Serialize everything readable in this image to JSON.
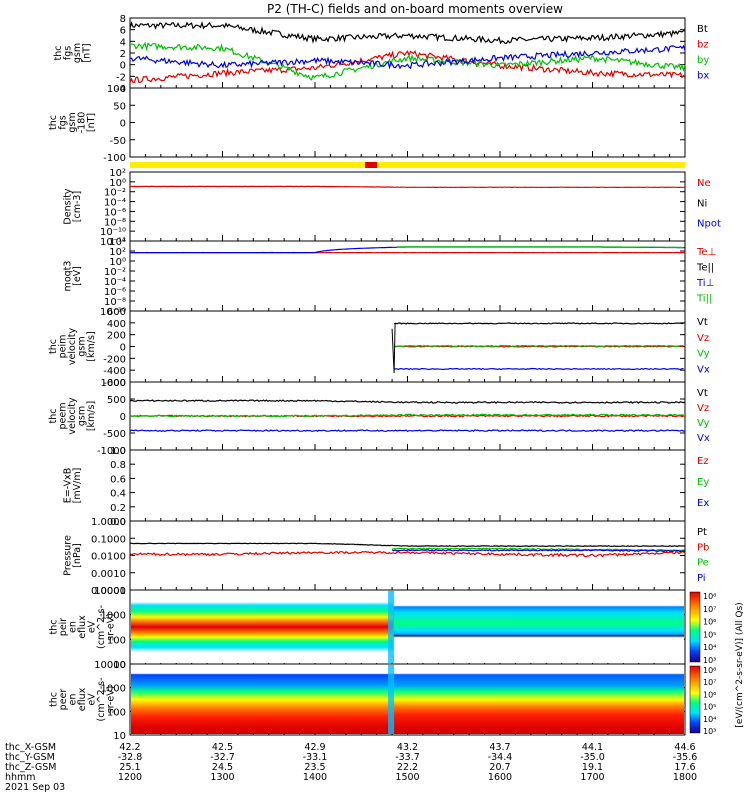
{
  "title": "P2 (TH-C) fields and on-board moments overview",
  "time_axis": {
    "ticks": [
      "1200",
      "1300",
      "1400",
      "1500",
      "1600",
      "1700",
      "1800"
    ],
    "row_labels": [
      "thc_X-GSM",
      "thc_Y-GSM",
      "thc_Z-GSM",
      "hhmm"
    ],
    "rows": [
      [
        "42.2",
        "42.5",
        "42.9",
        "43.2",
        "43.7",
        "44.1",
        "44.6"
      ],
      [
        "-32.8",
        "-32.7",
        "-33.1",
        "-33.7",
        "-34.4",
        "-35.0",
        "-35.6"
      ],
      [
        "25.1",
        "24.5",
        "23.5",
        "22.2",
        "20.7",
        "19.1",
        "17.6"
      ],
      [
        "1200",
        "1300",
        "1400",
        "1500",
        "1600",
        "1700",
        "1800"
      ]
    ],
    "date": "2021 Sep 03"
  },
  "panels": [
    {
      "ylabel": [
        "thc",
        "fgs",
        "gsm",
        "[nT]"
      ],
      "ticks": [
        "8",
        "6",
        "4",
        "2",
        "0",
        "-2",
        "-4"
      ],
      "legend": [
        [
          "Bt",
          "#000000"
        ],
        [
          "bz",
          "#e00000"
        ],
        [
          "by",
          "#00c000"
        ],
        [
          "bx",
          "#0000e0"
        ]
      ]
    },
    {
      "ylabel": [
        "thc",
        "fgs",
        "gsm",
        "-180",
        "[nT]"
      ],
      "ticks": [
        "100",
        "50",
        "0",
        "-50",
        "-100"
      ],
      "legend": []
    },
    {
      "ylabel": [
        "Density",
        "[cm-3]"
      ],
      "ticks": [
        "10²",
        "10⁰",
        "10⁻²",
        "10⁻⁴",
        "10⁻⁶",
        "10⁻⁸",
        "10⁻¹⁰",
        "10⁻¹²"
      ],
      "legend": [
        [
          "Ne",
          "#e00000"
        ],
        [
          "Ni",
          "#000000"
        ],
        [
          "Npot",
          "#0000e0"
        ]
      ]
    },
    {
      "ylabel": [
        "moqt3",
        "[eV]"
      ],
      "ticks": [
        "10⁴",
        "10²",
        "10⁰",
        "10⁻²",
        "10⁻⁴",
        "10⁻⁶",
        "10⁻⁸",
        "10⁻¹⁰"
      ],
      "legend": [
        [
          "Te⊥",
          "#e00000"
        ],
        [
          "Te||",
          "#000000"
        ],
        [
          "Ti⊥",
          "#0000e0"
        ],
        [
          "Ti||",
          "#00c000"
        ]
      ]
    },
    {
      "ylabel": [
        "thc",
        "peim",
        "velocity",
        "gsm",
        "[km/s]"
      ],
      "ticks": [
        "600",
        "400",
        "200",
        "0",
        "-200",
        "-400",
        "-600"
      ],
      "legend": [
        [
          "Vt",
          "#000000"
        ],
        [
          "Vz",
          "#e00000"
        ],
        [
          "Vy",
          "#00c000"
        ],
        [
          "Vx",
          "#0000e0"
        ]
      ]
    },
    {
      "ylabel": [
        "thc",
        "peem",
        "velocity",
        "gsm",
        "[km/s]"
      ],
      "ticks": [
        "1000",
        "500",
        "0",
        "-500",
        "-1000"
      ],
      "legend": [
        [
          "Vt",
          "#000000"
        ],
        [
          "Vz",
          "#e00000"
        ],
        [
          "Vy",
          "#00c000"
        ],
        [
          "Vx",
          "#0000e0"
        ]
      ]
    },
    {
      "ylabel": [
        "E=-VxB",
        "[mV/m]"
      ],
      "ticks": [
        "1.0",
        "0.8",
        "0.6",
        "0.4",
        "0.2",
        "0.0"
      ],
      "legend": [
        [
          "Ez",
          "#e00000"
        ],
        [
          "Ey",
          "#00c000"
        ],
        [
          "Ex",
          "#0000e0"
        ]
      ]
    },
    {
      "ylabel": [
        "Pressure",
        "[nPa]"
      ],
      "ticks": [
        "1.0000",
        "0.1000",
        "0.0100",
        "0.0010",
        "0.0001"
      ],
      "legend": [
        [
          "Pt",
          "#000000"
        ],
        [
          "Pb",
          "#e00000"
        ],
        [
          "Pe",
          "#00c000"
        ],
        [
          "Pi",
          "#0000e0"
        ]
      ]
    },
    {
      "ylabel": [
        "thc",
        "peir",
        "en",
        "eflux",
        "eV",
        "(cm^2-s-",
        "sr-eV)"
      ],
      "ticks": [
        "10000",
        "1000",
        "100",
        "10"
      ],
      "legend": []
    },
    {
      "ylabel": [
        "thc",
        "peer",
        "en",
        "eflux",
        "eV",
        "(cm^2-s-",
        "sr-eV)"
      ],
      "ticks": [
        "10000",
        "1000",
        "100",
        "10"
      ],
      "legend": []
    }
  ],
  "colorbar": {
    "ticks": [
      "10⁸",
      "10⁷",
      "10⁶",
      "10⁵",
      "10⁴",
      "10³"
    ],
    "label": "[eV/(cm^2-s-sr-eV)] (All Qs)"
  },
  "chart_data": [
    {
      "type": "line",
      "panel": "fgs gsm",
      "ylabel": "thc fgs gsm [nT]",
      "ylim": [
        -5,
        9
      ],
      "x": [
        "1200",
        "1300",
        "1400",
        "1500",
        "1600",
        "1700",
        "1800"
      ],
      "series": [
        {
          "name": "Bt",
          "values": [
            7.5,
            7.5,
            4.8,
            5.5,
            4.5,
            5,
            6
          ]
        },
        {
          "name": "bz",
          "values": [
            -3.5,
            -2,
            -1,
            2,
            -0.5,
            -2,
            -2.5
          ]
        },
        {
          "name": "by",
          "values": [
            3.5,
            3,
            -3,
            1,
            -0.5,
            1,
            -1
          ]
        },
        {
          "name": "bx",
          "values": [
            1,
            -0.5,
            0.5,
            -0.5,
            1,
            2,
            3
          ]
        }
      ]
    },
    {
      "type": "line",
      "panel": "fgs gsm -180",
      "ylabel": "thc fgs gsm -180 [nT]",
      "ylim": [
        -125,
        100
      ],
      "series": []
    },
    {
      "type": "line",
      "panel": "Density",
      "ylabel": "Density [cm-3]",
      "log": true,
      "x": [
        "1200",
        "1300",
        "1400",
        "1500",
        "1600",
        "1700",
        "1800"
      ],
      "series": [
        {
          "name": "Ne",
          "values": [
            0.3,
            0.3,
            0.3,
            0.2,
            0.2,
            0.2,
            0.2
          ]
        }
      ]
    },
    {
      "type": "line",
      "panel": "moqt3",
      "ylabel": "moqt3 [eV]",
      "log": true,
      "x": [
        "1200",
        "1300",
        "1400",
        "1500",
        "1600",
        "1700",
        "1800"
      ],
      "series": [
        {
          "name": "Te⊥",
          "values": [
            300,
            300,
            300,
            300,
            300,
            300,
            300
          ]
        },
        {
          "name": "Ti||",
          "values": [
            300,
            300,
            300,
            4000,
            4000,
            4000,
            3000
          ]
        }
      ]
    },
    {
      "type": "line",
      "panel": "peim velocity",
      "ylabel": "thc peim velocity gsm [km/s]",
      "ylim": [
        -600,
        600
      ],
      "x": [
        "1200",
        "1300",
        "1400",
        "1500",
        "1600",
        "1700",
        "1800"
      ],
      "series": [
        {
          "name": "Vt",
          "values": [
            null,
            null,
            null,
            390,
            390,
            390,
            390
          ]
        },
        {
          "name": "Vz",
          "values": [
            null,
            null,
            null,
            0,
            0,
            0,
            0
          ]
        },
        {
          "name": "Vy",
          "values": [
            null,
            null,
            null,
            10,
            10,
            10,
            10
          ]
        },
        {
          "name": "Vx",
          "values": [
            null,
            null,
            null,
            -380,
            -380,
            -380,
            -380
          ]
        }
      ]
    },
    {
      "type": "line",
      "panel": "peem velocity",
      "ylabel": "thc peem velocity gsm [km/s]",
      "ylim": [
        -1000,
        1000
      ],
      "x": [
        "1200",
        "1300",
        "1400",
        "1500",
        "1600",
        "1700",
        "1800"
      ],
      "series": [
        {
          "name": "Vt",
          "values": [
            450,
            450,
            450,
            400,
            400,
            400,
            400
          ]
        },
        {
          "name": "Vz",
          "values": [
            0,
            0,
            0,
            0,
            0,
            0,
            0
          ]
        },
        {
          "name": "Vy",
          "values": [
            0,
            0,
            0,
            30,
            30,
            30,
            30
          ]
        },
        {
          "name": "Vx",
          "values": [
            -430,
            -430,
            -430,
            -430,
            -430,
            -430,
            -430
          ]
        }
      ]
    },
    {
      "type": "line",
      "panel": "E=-VxB",
      "ylabel": "E=-VxB [mV/m]",
      "ylim": [
        0,
        1
      ],
      "series": []
    },
    {
      "type": "line",
      "panel": "Pressure",
      "ylabel": "Pressure [nPa]",
      "log": true,
      "x": [
        "1200",
        "1300",
        "1400",
        "1500",
        "1600",
        "1700",
        "1800"
      ],
      "series": [
        {
          "name": "Pt",
          "values": [
            0.05,
            0.05,
            0.05,
            0.035,
            0.035,
            0.035,
            0.035
          ]
        },
        {
          "name": "Pb",
          "values": [
            0.012,
            0.012,
            0.015,
            0.015,
            0.012,
            0.01,
            0.015
          ]
        },
        {
          "name": "Pe",
          "values": [
            null,
            null,
            null,
            0.025,
            0.025,
            0.022,
            0.02
          ]
        },
        {
          "name": "Pi",
          "values": [
            null,
            null,
            null,
            0.02,
            0.02,
            0.02,
            0.018
          ]
        }
      ]
    },
    {
      "type": "heatmap",
      "panel": "peir eflux",
      "ylabel": "thc peir en eflux eV (cm^2-s-sr-eV)"
    },
    {
      "type": "heatmap",
      "panel": "peer eflux",
      "ylabel": "thc peer en eflux eV (cm^2-s-sr-eV)"
    }
  ]
}
